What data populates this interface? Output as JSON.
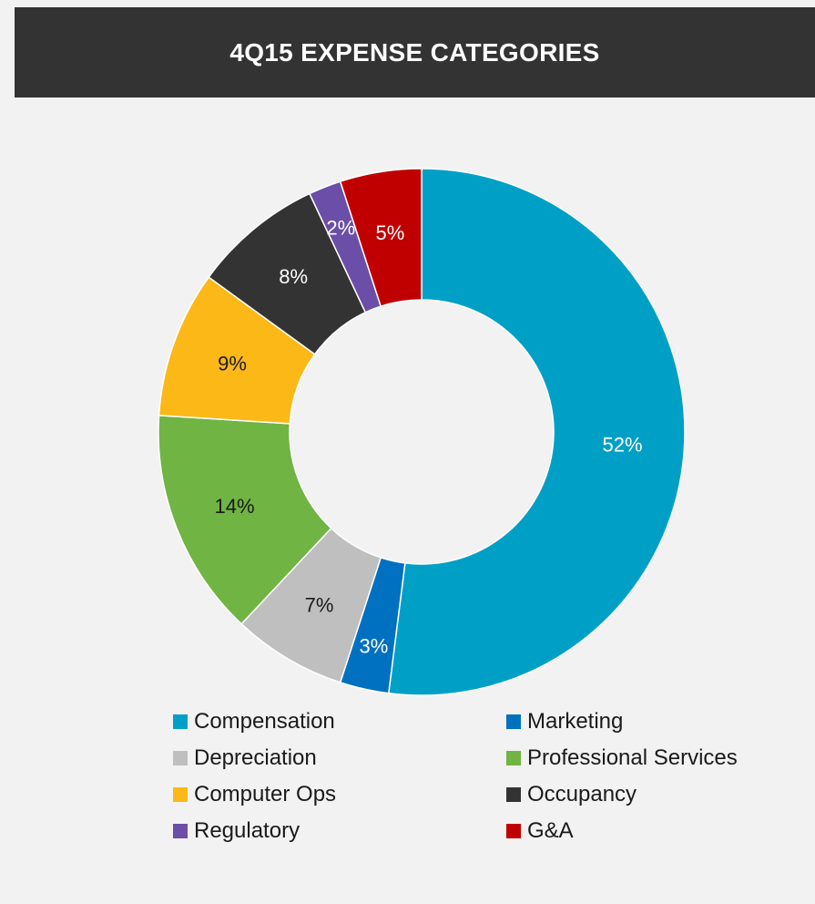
{
  "chart_data": {
    "type": "pie",
    "title": "4Q15 EXPENSE CATEGORIES",
    "style": "donut",
    "slices": [
      {
        "name": "Compensation",
        "value": 52,
        "label": "52%",
        "color": "#00a0c6",
        "label_color": "#ffffff"
      },
      {
        "name": "Marketing",
        "value": 3,
        "label": "3%",
        "color": "#0070c0",
        "label_color": "#ffffff"
      },
      {
        "name": "Depreciation",
        "value": 7,
        "label": "7%",
        "color": "#bfbfbf",
        "label_color": "#1a1a1a"
      },
      {
        "name": "Professional Services",
        "value": 14,
        "label": "14%",
        "color": "#70b443",
        "label_color": "#1a1a1a"
      },
      {
        "name": "Computer Ops",
        "value": 9,
        "label": "9%",
        "color": "#fbb817",
        "label_color": "#1a1a1a"
      },
      {
        "name": "Occupancy",
        "value": 8,
        "label": "8%",
        "color": "#333333",
        "label_color": "#ffffff"
      },
      {
        "name": "Regulatory",
        "value": 2,
        "label": "2%",
        "color": "#6b4ea8",
        "label_color": "#ffffff"
      },
      {
        "name": "G&A",
        "value": 5,
        "label": "5%",
        "color": "#c00000",
        "label_color": "#ffffff"
      }
    ],
    "legend_position": "bottom",
    "legend_order": [
      "Compensation",
      "Marketing",
      "Depreciation",
      "Professional Services",
      "Computer Ops",
      "Occupancy",
      "Regulatory",
      "G&A"
    ]
  },
  "header": {
    "title": "4Q15 EXPENSE CATEGORIES",
    "background": "#333333",
    "text_color": "#ffffff"
  },
  "page": {
    "background": "#f2f2f2"
  }
}
